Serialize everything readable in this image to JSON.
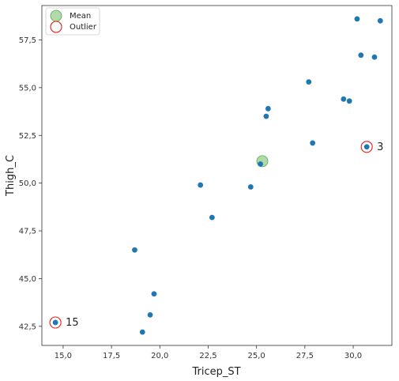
{
  "chart_data": {
    "type": "scatter",
    "xlabel": "Tricep_ST",
    "ylabel": "Thigh_C",
    "xlim": [
      13.9,
      32.0
    ],
    "ylim": [
      41.5,
      59.3
    ],
    "x_ticks": [
      15.0,
      17.5,
      20.0,
      22.5,
      25.0,
      27.5,
      30.0
    ],
    "y_ticks": [
      42.5,
      45.0,
      47.5,
      50.0,
      52.5,
      55.0,
      57.5
    ],
    "x_tick_labels": [
      "15,0",
      "17,5",
      "20,0",
      "22,5",
      "25,0",
      "27,5",
      "30,0"
    ],
    "y_tick_labels": [
      "42,5",
      "45,0",
      "47,5",
      "50,0",
      "52,5",
      "55,0",
      "57,5"
    ],
    "grid": false,
    "legend": {
      "placement": "top-left",
      "entries": [
        {
          "label": "Mean",
          "marker": "filled-circle",
          "color": "#a3d49b"
        },
        {
          "label": "Outlier",
          "marker": "hollow-circle",
          "color": "#e02020"
        }
      ]
    },
    "points": [
      {
        "x": 14.6,
        "y": 42.7
      },
      {
        "x": 18.7,
        "y": 46.5
      },
      {
        "x": 19.1,
        "y": 42.2
      },
      {
        "x": 19.5,
        "y": 43.1
      },
      {
        "x": 19.7,
        "y": 44.2
      },
      {
        "x": 22.1,
        "y": 49.9
      },
      {
        "x": 22.7,
        "y": 48.2
      },
      {
        "x": 24.7,
        "y": 49.8
      },
      {
        "x": 25.2,
        "y": 51.0
      },
      {
        "x": 25.5,
        "y": 53.5
      },
      {
        "x": 25.6,
        "y": 53.9
      },
      {
        "x": 27.7,
        "y": 55.3
      },
      {
        "x": 27.9,
        "y": 52.1
      },
      {
        "x": 29.5,
        "y": 54.4
      },
      {
        "x": 29.8,
        "y": 54.3
      },
      {
        "x": 30.2,
        "y": 58.6
      },
      {
        "x": 30.4,
        "y": 56.7
      },
      {
        "x": 30.7,
        "y": 51.9
      },
      {
        "x": 31.1,
        "y": 56.6
      },
      {
        "x": 31.4,
        "y": 58.5
      }
    ],
    "mean": {
      "x": 25.3,
      "y": 51.15
    },
    "outliers": [
      {
        "x": 30.7,
        "y": 51.9,
        "label": "3"
      },
      {
        "x": 14.6,
        "y": 42.7,
        "label": "15"
      }
    ],
    "colors": {
      "point": "#1f77b4",
      "mean_fill": "#a3d49b",
      "mean_edge": "#5aa852",
      "outlier_edge": "#e02020",
      "axes": "#333333"
    }
  }
}
